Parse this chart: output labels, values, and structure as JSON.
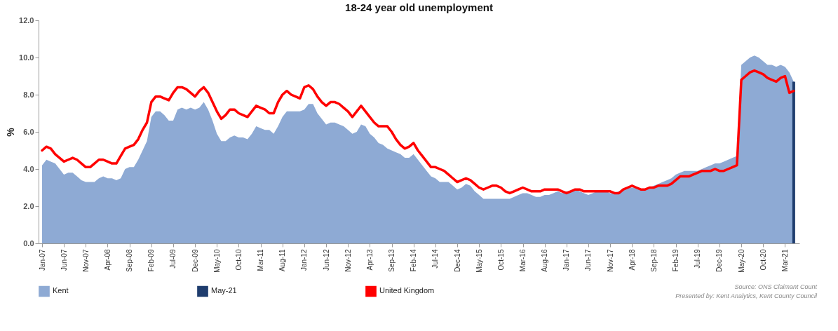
{
  "chart_data": {
    "type": "area",
    "title": "18-24 year old unemployment",
    "ylabel": "%",
    "categories": [
      "Jan-07",
      null,
      null,
      null,
      null,
      "Jun-07",
      null,
      null,
      null,
      null,
      "Nov-07",
      null,
      null,
      null,
      null,
      "Apr-08",
      null,
      null,
      null,
      null,
      "Sep-08",
      null,
      null,
      null,
      null,
      "Feb-09",
      null,
      null,
      null,
      null,
      "Jul-09",
      null,
      null,
      null,
      null,
      "Dec-09",
      null,
      null,
      null,
      null,
      "May-10",
      null,
      null,
      null,
      null,
      "Oct-10",
      null,
      null,
      null,
      null,
      "Mar-11",
      null,
      null,
      null,
      null,
      "Aug-11",
      null,
      null,
      null,
      null,
      "Jan-12",
      null,
      null,
      null,
      null,
      "Jun-12",
      null,
      null,
      null,
      null,
      "Nov-12",
      null,
      null,
      null,
      null,
      "Apr-13",
      null,
      null,
      null,
      null,
      "Sep-13",
      null,
      null,
      null,
      null,
      "Feb-14",
      null,
      null,
      null,
      null,
      "Jul-14",
      null,
      null,
      null,
      null,
      "Dec-14",
      null,
      null,
      null,
      null,
      "May-15",
      null,
      null,
      null,
      null,
      "Oct-15",
      null,
      null,
      null,
      null,
      "Mar-16",
      null,
      null,
      null,
      null,
      "Aug-16",
      null,
      null,
      null,
      null,
      "Jan-17",
      null,
      null,
      null,
      null,
      "Jun-17",
      null,
      null,
      null,
      null,
      "Nov-17",
      null,
      null,
      null,
      null,
      "Apr-18",
      null,
      null,
      null,
      null,
      "Sep-18",
      null,
      null,
      null,
      null,
      "Feb-19",
      null,
      null,
      null,
      null,
      "Jul-19",
      null,
      null,
      null,
      null,
      "Dec-19",
      null,
      null,
      null,
      null,
      "May-20",
      null,
      null,
      null,
      null,
      "Oct-20",
      null,
      null,
      null,
      null,
      "Mar-21",
      null,
      null
    ],
    "series": [
      {
        "name": "Kent",
        "color": "#8eaad4",
        "values": [
          4.2,
          4.5,
          4.4,
          4.3,
          4.0,
          3.7,
          3.8,
          3.8,
          3.6,
          3.4,
          3.3,
          3.3,
          3.3,
          3.5,
          3.6,
          3.5,
          3.5,
          3.4,
          3.5,
          4.0,
          4.1,
          4.1,
          4.5,
          5.0,
          5.5,
          6.8,
          7.1,
          7.1,
          6.9,
          6.6,
          6.6,
          7.2,
          7.3,
          7.2,
          7.3,
          7.2,
          7.3,
          7.6,
          7.2,
          6.6,
          5.9,
          5.5,
          5.5,
          5.7,
          5.8,
          5.7,
          5.7,
          5.6,
          5.9,
          6.3,
          6.2,
          6.1,
          6.1,
          5.9,
          6.3,
          6.8,
          7.1,
          7.1,
          7.1,
          7.1,
          7.2,
          7.5,
          7.5,
          7.0,
          6.7,
          6.4,
          6.5,
          6.5,
          6.4,
          6.3,
          6.1,
          5.9,
          6.0,
          6.4,
          6.3,
          5.9,
          5.7,
          5.4,
          5.3,
          5.1,
          5.0,
          4.9,
          4.8,
          4.6,
          4.6,
          4.8,
          4.5,
          4.2,
          3.9,
          3.6,
          3.5,
          3.3,
          3.3,
          3.3,
          3.1,
          2.9,
          3.0,
          3.2,
          3.1,
          2.8,
          2.6,
          2.4,
          2.4,
          2.4,
          2.4,
          2.4,
          2.4,
          2.4,
          2.5,
          2.6,
          2.7,
          2.7,
          2.6,
          2.5,
          2.5,
          2.6,
          2.6,
          2.7,
          2.8,
          2.7,
          2.8,
          2.8,
          2.9,
          2.8,
          2.7,
          2.6,
          2.7,
          2.8,
          2.8,
          2.8,
          2.7,
          2.7,
          2.8,
          2.9,
          3.0,
          3.0,
          3.0,
          2.9,
          2.9,
          3.0,
          3.1,
          3.2,
          3.3,
          3.4,
          3.5,
          3.7,
          3.8,
          3.9,
          3.9,
          3.9,
          3.9,
          4.0,
          4.1,
          4.2,
          4.3,
          4.3,
          4.4,
          4.5,
          4.6,
          4.7,
          9.6,
          9.8,
          10.0,
          10.1,
          10.0,
          9.8,
          9.6,
          9.6,
          9.5,
          9.6,
          9.5,
          9.2,
          8.7
        ]
      },
      {
        "name": "May-21",
        "type": "bar",
        "color": "#1f3d6e",
        "values": [
          null,
          null,
          null,
          null,
          null,
          null,
          null,
          null,
          null,
          null,
          null,
          null,
          null,
          null,
          null,
          null,
          null,
          null,
          null,
          null,
          null,
          null,
          null,
          null,
          null,
          null,
          null,
          null,
          null,
          null,
          null,
          null,
          null,
          null,
          null,
          null,
          null,
          null,
          null,
          null,
          null,
          null,
          null,
          null,
          null,
          null,
          null,
          null,
          null,
          null,
          null,
          null,
          null,
          null,
          null,
          null,
          null,
          null,
          null,
          null,
          null,
          null,
          null,
          null,
          null,
          null,
          null,
          null,
          null,
          null,
          null,
          null,
          null,
          null,
          null,
          null,
          null,
          null,
          null,
          null,
          null,
          null,
          null,
          null,
          null,
          null,
          null,
          null,
          null,
          null,
          null,
          null,
          null,
          null,
          null,
          null,
          null,
          null,
          null,
          null,
          null,
          null,
          null,
          null,
          null,
          null,
          null,
          null,
          null,
          null,
          null,
          null,
          null,
          null,
          null,
          null,
          null,
          null,
          null,
          null,
          null,
          null,
          null,
          null,
          null,
          null,
          null,
          null,
          null,
          null,
          null,
          null,
          null,
          null,
          null,
          null,
          null,
          null,
          null,
          null,
          null,
          null,
          null,
          null,
          null,
          null,
          null,
          null,
          null,
          null,
          null,
          null,
          null,
          null,
          null,
          null,
          null,
          null,
          null,
          null,
          null,
          null,
          null,
          null,
          null,
          null,
          null,
          null,
          null,
          null,
          null,
          null,
          8.7
        ]
      },
      {
        "name": "United Kingdom",
        "type": "line",
        "color": "#ff0000",
        "values": [
          5.0,
          5.2,
          5.1,
          4.8,
          4.6,
          4.4,
          4.5,
          4.6,
          4.5,
          4.3,
          4.1,
          4.1,
          4.3,
          4.5,
          4.5,
          4.4,
          4.3,
          4.3,
          4.7,
          5.1,
          5.2,
          5.3,
          5.6,
          6.1,
          6.5,
          7.6,
          7.9,
          7.9,
          7.8,
          7.7,
          8.1,
          8.4,
          8.4,
          8.3,
          8.1,
          7.9,
          8.2,
          8.4,
          8.1,
          7.6,
          7.1,
          6.7,
          6.9,
          7.2,
          7.2,
          7.0,
          6.9,
          6.8,
          7.1,
          7.4,
          7.3,
          7.2,
          7.0,
          7.0,
          7.6,
          8.0,
          8.2,
          8.0,
          7.9,
          7.8,
          8.4,
          8.5,
          8.3,
          7.9,
          7.6,
          7.4,
          7.6,
          7.6,
          7.5,
          7.3,
          7.1,
          6.8,
          7.1,
          7.4,
          7.1,
          6.8,
          6.5,
          6.3,
          6.3,
          6.3,
          6.0,
          5.6,
          5.3,
          5.1,
          5.2,
          5.4,
          5.0,
          4.7,
          4.4,
          4.1,
          4.1,
          4.0,
          3.9,
          3.7,
          3.5,
          3.3,
          3.4,
          3.5,
          3.4,
          3.2,
          3.0,
          2.9,
          3.0,
          3.1,
          3.1,
          3.0,
          2.8,
          2.7,
          2.8,
          2.9,
          3.0,
          2.9,
          2.8,
          2.8,
          2.8,
          2.9,
          2.9,
          2.9,
          2.9,
          2.8,
          2.7,
          2.8,
          2.9,
          2.9,
          2.8,
          2.8,
          2.8,
          2.8,
          2.8,
          2.8,
          2.8,
          2.7,
          2.7,
          2.9,
          3.0,
          3.1,
          3.0,
          2.9,
          2.9,
          3.0,
          3.0,
          3.1,
          3.1,
          3.1,
          3.2,
          3.4,
          3.6,
          3.6,
          3.6,
          3.7,
          3.8,
          3.9,
          3.9,
          3.9,
          4.0,
          3.9,
          3.9,
          4.0,
          4.1,
          4.2,
          8.8,
          9.0,
          9.2,
          9.3,
          9.2,
          9.1,
          8.9,
          8.8,
          8.7,
          8.9,
          9.0,
          8.1,
          8.2
        ]
      }
    ],
    "ylim": [
      0,
      12
    ],
    "yticks": [
      {
        "value": 0,
        "label": "0.0"
      },
      {
        "value": 2,
        "label": "2.0"
      },
      {
        "value": 4,
        "label": "4.0"
      },
      {
        "value": 6,
        "label": "6.0"
      },
      {
        "value": 8,
        "label": "8.0"
      },
      {
        "value": 10,
        "label": "10.0"
      },
      {
        "value": 12,
        "label": "12.0"
      }
    ],
    "legend": "bottom",
    "annotations": [
      "Source: ONS Claimant Count",
      "Presented by: Kent Analytics, Kent County Council"
    ]
  }
}
